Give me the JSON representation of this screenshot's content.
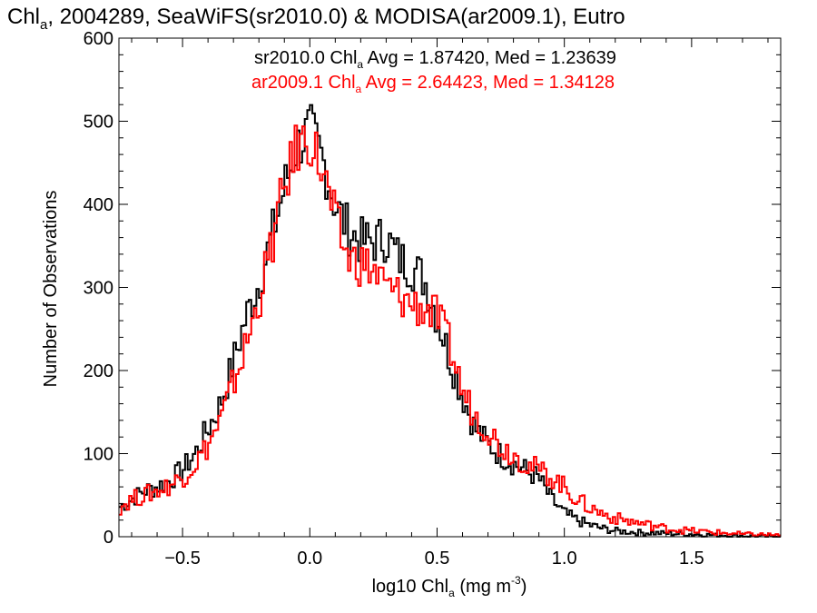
{
  "chart_data": {
    "type": "histogram",
    "title": {
      "main": "Chl",
      "sub": "a",
      "rest": ", 2004289, SeaWiFS(sr2010.0) & MODISA(ar2009.1), Eutro"
    },
    "xlabel": {
      "pre": "log10 Chl",
      "sub": "a",
      "mid": " (mg m",
      "sup": "-3",
      "post": ")"
    },
    "ylabel": "Number of Observations",
    "xlim": [
      -0.75,
      1.85
    ],
    "ylim": [
      0,
      600
    ],
    "xticks": [
      -0.5,
      0.0,
      0.5,
      1.0,
      1.5
    ],
    "xtick_labels": [
      "−0.5",
      "0.0",
      "0.5",
      "1.0",
      "1.5"
    ],
    "yticks": [
      0,
      100,
      200,
      300,
      400,
      500,
      600
    ],
    "ytick_labels": [
      "0",
      "100",
      "200",
      "300",
      "400",
      "500",
      "600"
    ],
    "legend": [
      {
        "pre": "sr2010.0 Chl",
        "sub": "a",
        "post": " Avg = 1.87420, Med = 1.23639",
        "color": "#000000"
      },
      {
        "pre": "ar2009.1 Chl",
        "sub": "a",
        "post": " Avg = 2.64423, Med = 1.34128",
        "color": "#ff0000"
      }
    ],
    "grid": false,
    "series": [
      {
        "name": "sr2010.0",
        "color": "#000000",
        "x": [
          -0.75,
          -0.7,
          -0.65,
          -0.6,
          -0.55,
          -0.5,
          -0.45,
          -0.4,
          -0.35,
          -0.3,
          -0.25,
          -0.2,
          -0.15,
          -0.1,
          -0.05,
          0.0,
          0.05,
          0.1,
          0.15,
          0.2,
          0.25,
          0.3,
          0.35,
          0.4,
          0.45,
          0.5,
          0.55,
          0.6,
          0.65,
          0.7,
          0.75,
          0.8,
          0.85,
          0.9,
          0.95,
          1.0,
          1.05,
          1.1,
          1.15,
          1.2,
          1.3,
          1.4,
          1.5,
          1.6,
          1.7,
          1.85
        ],
        "y": [
          35,
          45,
          55,
          60,
          68,
          80,
          100,
          130,
          160,
          210,
          265,
          305,
          360,
          420,
          470,
          490,
          455,
          400,
          370,
          355,
          355,
          360,
          335,
          325,
          310,
          265,
          215,
          170,
          130,
          112,
          98,
          88,
          80,
          70,
          45,
          28,
          20,
          14,
          10,
          7,
          5,
          4,
          3,
          2,
          1,
          0
        ]
      },
      {
        "name": "ar2009.1",
        "color": "#ff0000",
        "x": [
          -0.75,
          -0.7,
          -0.65,
          -0.6,
          -0.55,
          -0.5,
          -0.45,
          -0.4,
          -0.35,
          -0.3,
          -0.25,
          -0.2,
          -0.15,
          -0.1,
          -0.05,
          0.0,
          0.05,
          0.1,
          0.15,
          0.2,
          0.25,
          0.3,
          0.35,
          0.4,
          0.45,
          0.5,
          0.55,
          0.6,
          0.65,
          0.7,
          0.75,
          0.8,
          0.85,
          0.9,
          0.95,
          1.0,
          1.05,
          1.1,
          1.15,
          1.2,
          1.3,
          1.4,
          1.5,
          1.6,
          1.7,
          1.85
        ],
        "y": [
          35,
          45,
          50,
          55,
          62,
          72,
          88,
          110,
          140,
          185,
          230,
          285,
          350,
          420,
          470,
          480,
          440,
          380,
          335,
          330,
          320,
          300,
          290,
          280,
          275,
          265,
          230,
          175,
          145,
          130,
          108,
          100,
          88,
          80,
          72,
          60,
          45,
          35,
          28,
          22,
          16,
          10,
          7,
          5,
          3,
          2
        ]
      }
    ]
  }
}
